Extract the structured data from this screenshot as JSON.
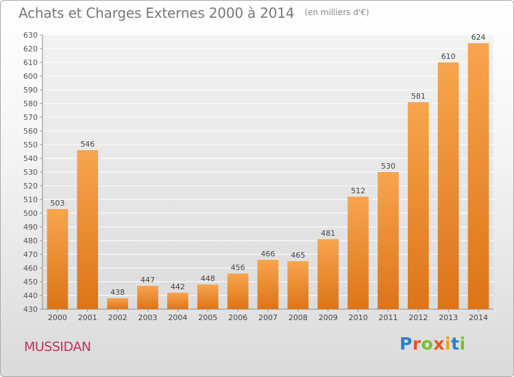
{
  "header": {
    "title": "Achats et Charges Externes 2000 à 2014",
    "subtitle": "(en milliers d'€)"
  },
  "footer": {
    "commune": "MUSSIDAN",
    "logo_text": "Proxiti",
    "logo_colors": [
      "#2a7fd4",
      "#e8552a",
      "#7abf2a",
      "#e8552a",
      "#f0a020",
      "#2a7fd4",
      "#7abf2a"
    ]
  },
  "chart_data": {
    "type": "bar",
    "title": "Achats et Charges Externes 2000 à 2014",
    "subtitle": "(en milliers d'€)",
    "categories": [
      "2000",
      "2001",
      "2002",
      "2003",
      "2004",
      "2005",
      "2006",
      "2007",
      "2008",
      "2009",
      "2010",
      "2011",
      "2012",
      "2013",
      "2014"
    ],
    "values": [
      503,
      546,
      438,
      447,
      442,
      448,
      456,
      466,
      465,
      481,
      512,
      530,
      581,
      610,
      624
    ],
    "ylim": [
      430,
      630
    ],
    "ytick_step": 10,
    "grid": true,
    "bar_color_top": "#f7a54e",
    "bar_color_bottom": "#dd7418",
    "data_labels": true
  }
}
